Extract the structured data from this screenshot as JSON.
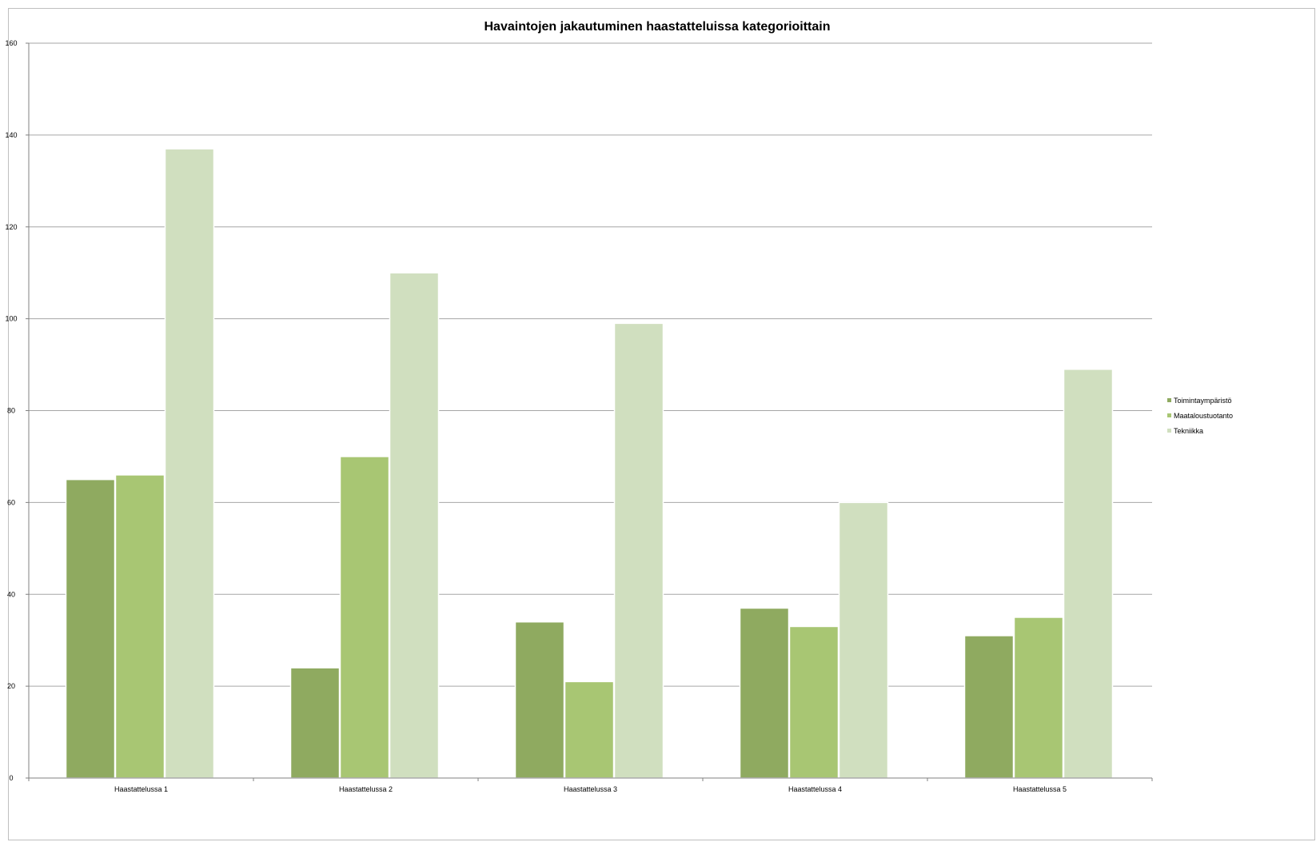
{
  "chart_data": {
    "type": "bar",
    "title": "Havaintojen jakautuminen haastatteluissa kategorioittain",
    "xlabel": "",
    "ylabel": "",
    "categories": [
      "Haastattelussa 1",
      "Haastattelussa 2",
      "Haastattelussa 3",
      "Haastattelussa 4",
      "Haastattelussa 5"
    ],
    "series": [
      {
        "name": "Toimintaympäristö",
        "values": [
          65,
          24,
          34,
          37,
          31
        ],
        "color": "#8faa60"
      },
      {
        "name": "Maataloustuotanto",
        "values": [
          66,
          70,
          21,
          33,
          35
        ],
        "color": "#a8c673"
      },
      {
        "name": "Tekniikka",
        "values": [
          137,
          110,
          99,
          60,
          89
        ],
        "color": "#d0dfbf"
      }
    ],
    "ylim": [
      0,
      160
    ],
    "yticks": [
      0,
      20,
      40,
      60,
      80,
      100,
      120,
      140,
      160
    ],
    "grid": true,
    "legend_position": "right"
  }
}
